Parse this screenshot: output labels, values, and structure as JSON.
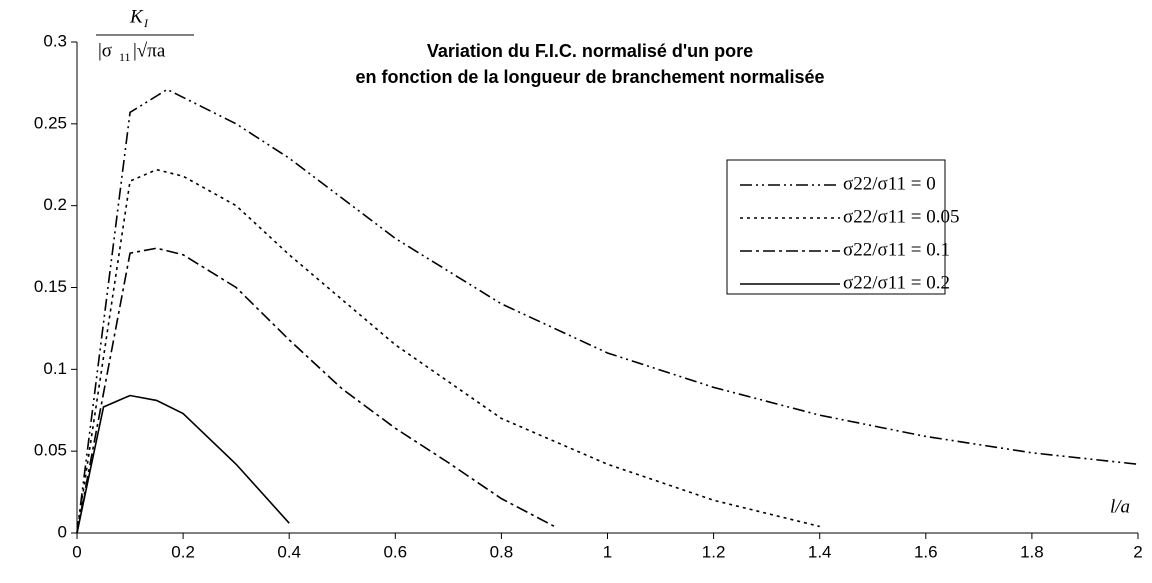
{
  "chart_data": {
    "type": "line",
    "title": "Variation du F.I.C. normalisé d'un pore",
    "subtitle": "en fonction de la longueur de branchement normalisée",
    "xlabel": "l/a",
    "ylabel": {
      "num": "K",
      "num_sub": "I",
      "den": "|σ",
      "den_sub": "11",
      "den_rest": "|√πa"
    },
    "xlim": [
      0,
      2
    ],
    "xticks": [
      0,
      0.2,
      0.4,
      0.6,
      0.8,
      1,
      1.2,
      1.4,
      1.6,
      1.8,
      2
    ],
    "ylim": [
      0,
      0.3
    ],
    "yticks": [
      0,
      0.05,
      0.1,
      0.15,
      0.2,
      0.25,
      0.3
    ],
    "grid": false,
    "series": [
      {
        "name": "σ22/σ11 = 0",
        "color": "#000000",
        "dash": "12,4,2,4,2,4",
        "x": [
          0,
          0.1,
          0.17,
          0.3,
          0.4,
          0.6,
          0.8,
          1,
          1.2,
          1.4,
          1.6,
          1.8,
          2
        ],
        "values": [
          0,
          0.257,
          0.271,
          0.25,
          0.229,
          0.18,
          0.14,
          0.11,
          0.089,
          0.072,
          0.059,
          0.049,
          0.042
        ]
      },
      {
        "name": "σ22/σ11 = 0.05",
        "color": "#000000",
        "dash": "3,4",
        "x": [
          0,
          0.1,
          0.15,
          0.2,
          0.3,
          0.4,
          0.6,
          0.8,
          1,
          1.2,
          1.4
        ],
        "values": [
          0,
          0.215,
          0.222,
          0.218,
          0.2,
          0.17,
          0.115,
          0.07,
          0.042,
          0.02,
          0.004
        ]
      },
      {
        "name": "σ22/σ11 = 0.1",
        "color": "#000000",
        "dash": "12,4,3,4",
        "x": [
          0,
          0.1,
          0.15,
          0.2,
          0.3,
          0.4,
          0.5,
          0.6,
          0.7,
          0.8,
          0.9
        ],
        "values": [
          0,
          0.171,
          0.174,
          0.17,
          0.15,
          0.118,
          0.088,
          0.064,
          0.043,
          0.021,
          0.004
        ]
      },
      {
        "name": "σ22/σ11 = 0.2",
        "color": "#000000",
        "dash": "none",
        "x": [
          0,
          0.05,
          0.1,
          0.15,
          0.2,
          0.3,
          0.4
        ],
        "values": [
          0,
          0.077,
          0.084,
          0.081,
          0.073,
          0.042,
          0.006
        ]
      }
    ]
  }
}
